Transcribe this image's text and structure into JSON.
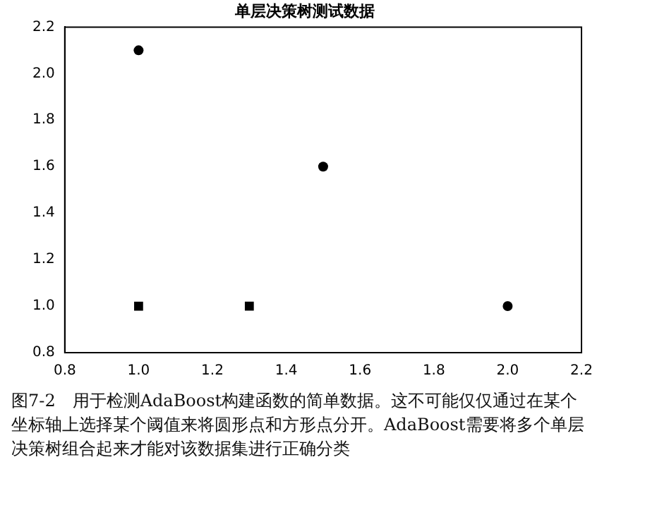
{
  "chart_data": {
    "type": "scatter",
    "title": "单层决策树测试数据",
    "series": [
      {
        "color": "#000000",
        "marker": "circle",
        "x": [
          1.0,
          1.5,
          2.0
        ],
        "values": [
          2.1,
          1.6,
          1.0
        ]
      },
      {
        "color": "#000000",
        "marker": "square",
        "x": [
          1.3,
          1.0
        ],
        "values": [
          1.0,
          1.0
        ]
      }
    ],
    "xlim": [
      0.8,
      2.2
    ],
    "xticks": [
      0.8,
      {
        "value": 1,
        "label": "1.0"
      },
      1.2,
      1.4,
      1.6,
      1.8,
      {
        "value": 2,
        "label": "2.0"
      },
      2.2
    ],
    "ylim": [
      0.8,
      2.2
    ],
    "yticks": [
      0.8,
      {
        "value": 1,
        "label": "1.0"
      },
      1.2,
      1.4,
      1.6,
      1.8,
      {
        "value": 2,
        "label": "2.0"
      },
      2.2
    ],
    "annotations": [
      "图7-2　用于检测AdaBoost构建函数的简单数据。这不可能仅仅通过在某个坐标轴上选择某个阈值来将圆形点和方形点分开。AdaBoost需要将多个单层决策树组合起来才能对该数据集进行正确分类"
    ]
  }
}
